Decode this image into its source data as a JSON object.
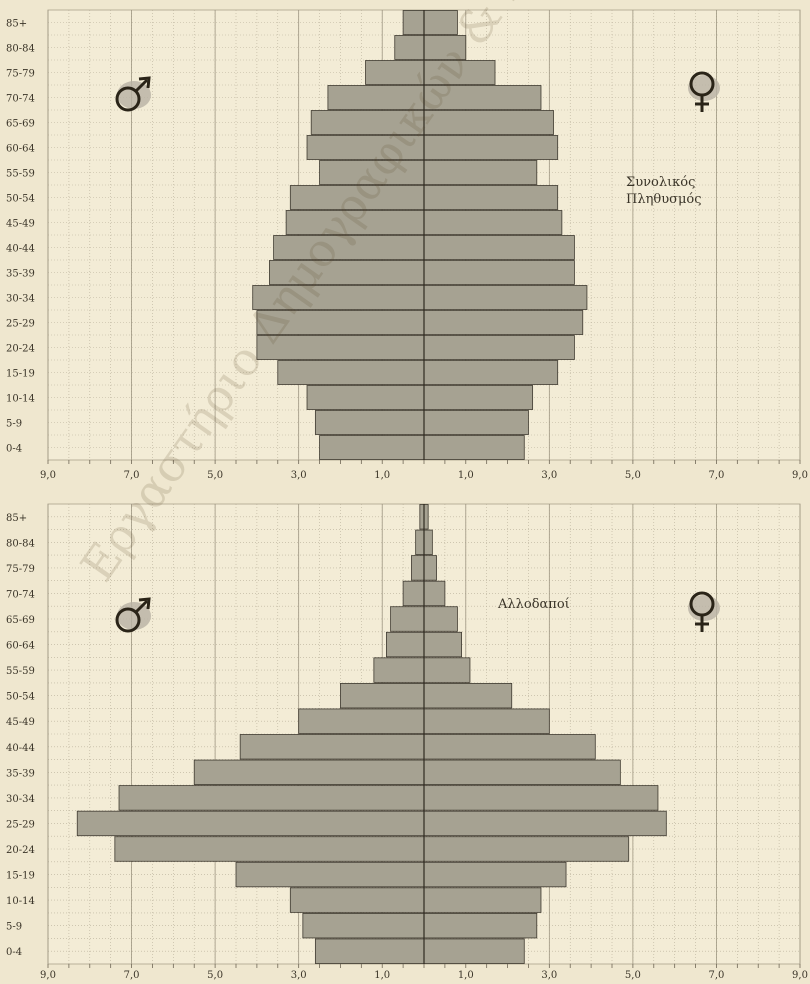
{
  "watermark": "Εργαστήριο Δημογραφικών & Κοινωνικών Αναλύσεων",
  "symbols": {
    "male": "♂",
    "female": "♀",
    "male_icon": "male-symbol-icon",
    "female_icon": "female-symbol-icon"
  },
  "colors": {
    "background": "#efe7cf",
    "bar": "#a6a292",
    "bar_stroke": "#3f3a30",
    "grid": "#b9b09a"
  },
  "chart_data": [
    {
      "type": "bar",
      "orientation": "horizontal",
      "subtype": "population-pyramid",
      "annotation": [
        "Συνολικός",
        "Πληθυσμός"
      ],
      "categories": [
        "0-4",
        "5-9",
        "10-14",
        "15-19",
        "20-24",
        "25-29",
        "30-34",
        "35-39",
        "40-44",
        "45-49",
        "50-54",
        "55-59",
        "60-64",
        "65-69",
        "70-74",
        "75-79",
        "80-84",
        "85+"
      ],
      "series": [
        {
          "values": [
            2.5,
            2.6,
            2.8,
            3.5,
            4.0,
            4.0,
            4.1,
            3.7,
            3.6,
            3.3,
            3.2,
            2.5,
            2.8,
            2.7,
            2.3,
            1.4,
            0.7,
            0.5
          ]
        },
        {
          "values": [
            2.4,
            2.5,
            2.6,
            3.2,
            3.6,
            3.8,
            3.9,
            3.6,
            3.6,
            3.3,
            3.2,
            2.7,
            3.2,
            3.1,
            2.8,
            1.7,
            1.0,
            0.8
          ]
        }
      ],
      "x_ticks": [
        "9,0",
        "7,0",
        "5,0",
        "3,0",
        "1,0",
        "1,0",
        "3,0",
        "5,0",
        "7,0",
        "9,0"
      ],
      "xlim": [
        -9,
        9
      ],
      "grid": true
    },
    {
      "type": "bar",
      "orientation": "horizontal",
      "subtype": "population-pyramid",
      "annotation": [
        "Αλλοδαποί"
      ],
      "categories": [
        "0-4",
        "5-9",
        "10-14",
        "15-19",
        "20-24",
        "25-29",
        "30-34",
        "35-39",
        "40-44",
        "45-49",
        "50-54",
        "55-59",
        "60-64",
        "65-69",
        "70-74",
        "75-79",
        "80-84",
        "85+"
      ],
      "series": [
        {
          "values": [
            2.6,
            2.9,
            3.2,
            4.5,
            7.4,
            8.3,
            7.3,
            5.5,
            4.4,
            3.0,
            2.0,
            1.2,
            0.9,
            0.8,
            0.5,
            0.3,
            0.2,
            0.1
          ]
        },
        {
          "values": [
            2.4,
            2.7,
            2.8,
            3.4,
            4.9,
            5.8,
            5.6,
            4.7,
            4.1,
            3.0,
            2.1,
            1.1,
            0.9,
            0.8,
            0.5,
            0.3,
            0.2,
            0.1
          ]
        }
      ],
      "x_ticks": [
        "9,0",
        "7,0",
        "5,0",
        "3,0",
        "1,0",
        "1,0",
        "3,0",
        "5,0",
        "7,0",
        "9,0"
      ],
      "xlim": [
        -9,
        9
      ],
      "grid": true
    }
  ]
}
